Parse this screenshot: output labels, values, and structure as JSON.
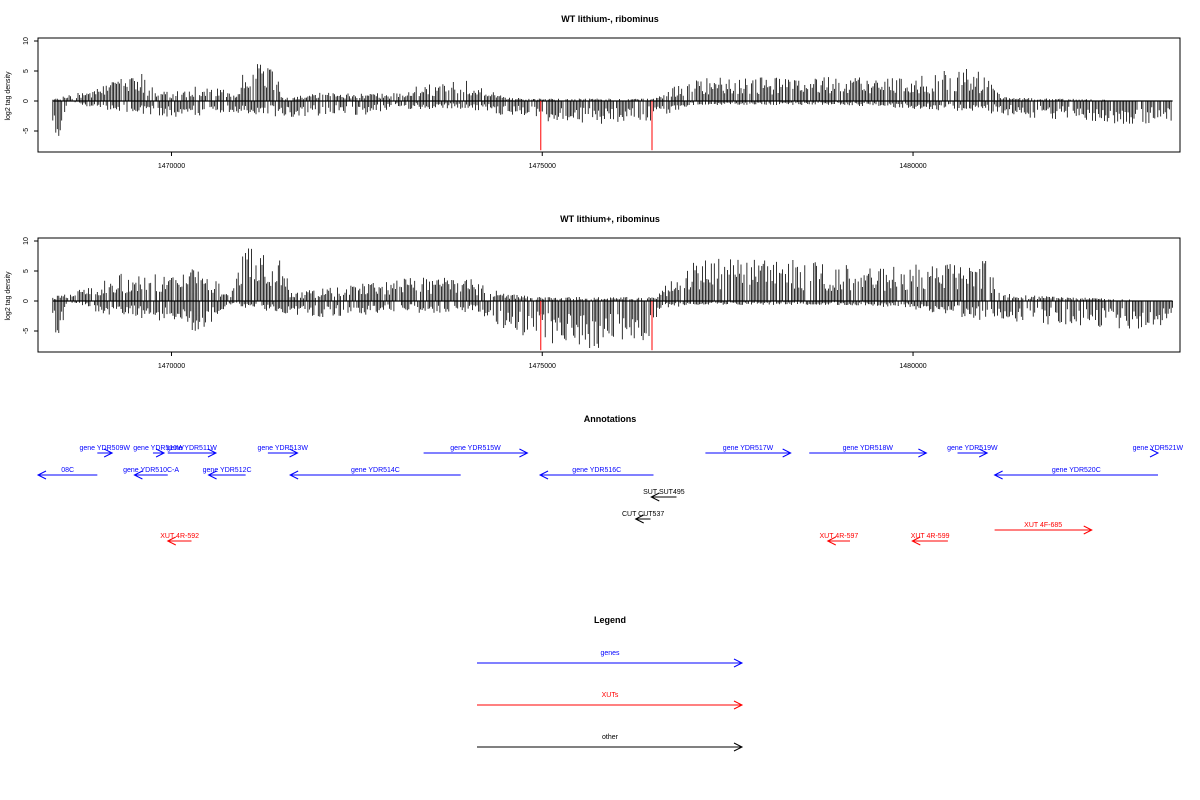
{
  "chart_data": [
    {
      "type": "bar",
      "title": "WT lithium-, ribominus",
      "ylabel": "log2 tag density",
      "xlim": [
        1468200,
        1483600
      ],
      "ylim": [
        -8.5,
        10.5
      ],
      "x_ticks": [
        1470000,
        1475000,
        1480000
      ],
      "x_tick_labels": [
        "1470000",
        "1475000",
        "1480000"
      ],
      "y_ticks": [
        -5,
        0,
        5,
        10
      ],
      "y_tick_labels": [
        "-5",
        "0",
        "5",
        "10"
      ],
      "bin_width": 20,
      "positive_profile": [
        [
          1468200,
          0
        ],
        [
          1469000,
          1.5
        ],
        [
          1469300,
          3.0
        ],
        [
          1469600,
          3.5
        ],
        [
          1469800,
          1.0
        ],
        [
          1470400,
          2.0
        ],
        [
          1470900,
          1.0
        ],
        [
          1471000,
          5.0
        ],
        [
          1471400,
          4.0
        ],
        [
          1471500,
          0.5
        ],
        [
          1472000,
          1.0
        ],
        [
          1473000,
          1.0
        ],
        [
          1473300,
          2.0
        ],
        [
          1474000,
          2.5
        ],
        [
          1474500,
          0.5
        ],
        [
          1474900,
          0.3
        ],
        [
          1476500,
          0.3
        ],
        [
          1477000,
          3.0
        ],
        [
          1478000,
          3.0
        ],
        [
          1479000,
          3.0
        ],
        [
          1480000,
          3.0
        ],
        [
          1480300,
          3.5
        ],
        [
          1480600,
          4.5
        ],
        [
          1481000,
          3.5
        ],
        [
          1481200,
          0.5
        ],
        [
          1482000,
          0.3
        ],
        [
          1483500,
          0
        ]
      ],
      "negative_profile": [
        [
          1468200,
          -5.0
        ],
        [
          1468500,
          -4.5
        ],
        [
          1468600,
          0
        ],
        [
          1469000,
          -1.0
        ],
        [
          1470000,
          -2.0
        ],
        [
          1471000,
          -1.5
        ],
        [
          1471500,
          -2.0
        ],
        [
          1472500,
          -2.0
        ],
        [
          1473000,
          -1.0
        ],
        [
          1474000,
          -1.0
        ],
        [
          1474900,
          -2.5
        ],
        [
          1475500,
          -3.0
        ],
        [
          1476500,
          -2.5
        ],
        [
          1477000,
          -0.5
        ],
        [
          1478000,
          -0.5
        ],
        [
          1479000,
          -0.5
        ],
        [
          1480000,
          -1.0
        ],
        [
          1481000,
          -1.5
        ],
        [
          1482000,
          -2.5
        ],
        [
          1483000,
          -3.0
        ],
        [
          1483500,
          -2.5
        ]
      ],
      "highlight_lines": [
        {
          "x": 1474980,
          "y0": 0,
          "y1": -8.2,
          "color": "#ff0000"
        },
        {
          "x": 1476480,
          "y0": 0,
          "y1": -8.2,
          "color": "#ff0000"
        }
      ]
    },
    {
      "type": "bar",
      "title": "WT lithium+, ribominus",
      "ylabel": "log2 tag density",
      "xlim": [
        1468200,
        1483600
      ],
      "ylim": [
        -8.5,
        10.5
      ],
      "x_ticks": [
        1470000,
        1475000,
        1480000
      ],
      "x_tick_labels": [
        "1470000",
        "1475000",
        "1480000"
      ],
      "y_ticks": [
        -5,
        0,
        5,
        10
      ],
      "y_tick_labels": [
        "-5",
        "0",
        "5",
        "10"
      ],
      "bin_width": 20,
      "positive_profile": [
        [
          1468200,
          0
        ],
        [
          1469000,
          2.0
        ],
        [
          1469300,
          3.5
        ],
        [
          1469700,
          3.5
        ],
        [
          1470400,
          4.0
        ],
        [
          1470800,
          1.0
        ],
        [
          1471000,
          7.0
        ],
        [
          1471500,
          5.5
        ],
        [
          1471600,
          1.0
        ],
        [
          1472000,
          1.5
        ],
        [
          1473300,
          3.0
        ],
        [
          1474000,
          3.0
        ],
        [
          1474500,
          1.0
        ],
        [
          1474900,
          0.5
        ],
        [
          1476500,
          0.5
        ],
        [
          1477000,
          5.0
        ],
        [
          1477500,
          5.5
        ],
        [
          1478500,
          5.0
        ],
        [
          1479500,
          4.5
        ],
        [
          1480300,
          4.5
        ],
        [
          1480700,
          5.5
        ],
        [
          1481000,
          5.0
        ],
        [
          1481200,
          1.0
        ],
        [
          1482000,
          0.5
        ],
        [
          1483500,
          0
        ]
      ],
      "negative_profile": [
        [
          1468200,
          -5.0
        ],
        [
          1468500,
          -4.0
        ],
        [
          1468600,
          0
        ],
        [
          1469000,
          -1.5
        ],
        [
          1469800,
          -2.5
        ],
        [
          1470400,
          -4.0
        ],
        [
          1470800,
          -0.5
        ],
        [
          1471000,
          -1.0
        ],
        [
          1472000,
          -2.0
        ],
        [
          1473000,
          -1.5
        ],
        [
          1474000,
          -1.5
        ],
        [
          1474900,
          -5.0
        ],
        [
          1475500,
          -6.0
        ],
        [
          1476400,
          -5.5
        ],
        [
          1476600,
          -1.0
        ],
        [
          1477000,
          -0.5
        ],
        [
          1478000,
          -0.5
        ],
        [
          1479000,
          -0.5
        ],
        [
          1480000,
          -1.0
        ],
        [
          1481000,
          -2.5
        ],
        [
          1482000,
          -3.0
        ],
        [
          1483000,
          -3.5
        ],
        [
          1483500,
          -3.0
        ]
      ],
      "highlight_lines": [
        {
          "x": 1474980,
          "y0": 0,
          "y1": -8.2,
          "color": "#ff0000"
        },
        {
          "x": 1476480,
          "y0": 0,
          "y1": -8.2,
          "color": "#ff0000"
        }
      ]
    }
  ],
  "annotations": {
    "title": "Annotations",
    "genes_color": "#0000ff",
    "xuts_color": "#ff0000",
    "other_color": "#000000",
    "features": [
      {
        "label": "08C",
        "start": 1468200,
        "end": 1469000,
        "strand": "-",
        "kind": "gene",
        "track": 1
      },
      {
        "label": "gene YDR509W",
        "start": 1469000,
        "end": 1469200,
        "strand": "+",
        "kind": "gene",
        "track": 0
      },
      {
        "label": "gene YDR510W",
        "start": 1469750,
        "end": 1469900,
        "strand": "+",
        "kind": "gene",
        "track": 0
      },
      {
        "label": "gene YDR510C-A",
        "start": 1469500,
        "end": 1469950,
        "strand": "-",
        "kind": "gene",
        "track": 1
      },
      {
        "label": "gene YDR511W",
        "start": 1469950,
        "end": 1470600,
        "strand": "+",
        "kind": "gene",
        "track": 0
      },
      {
        "label": "gene YDR512C",
        "start": 1470500,
        "end": 1471000,
        "strand": "-",
        "kind": "gene",
        "track": 1
      },
      {
        "label": "gene YDR513W",
        "start": 1471300,
        "end": 1471700,
        "strand": "+",
        "kind": "gene",
        "track": 0
      },
      {
        "label": "gene YDR514C",
        "start": 1471600,
        "end": 1473900,
        "strand": "-",
        "kind": "gene",
        "track": 1
      },
      {
        "label": "gene YDR515W",
        "start": 1473400,
        "end": 1474800,
        "strand": "+",
        "kind": "gene",
        "track": 0
      },
      {
        "label": "gene YDR516C",
        "start": 1474970,
        "end": 1476500,
        "strand": "-",
        "kind": "gene",
        "track": 1
      },
      {
        "label": "gene YDR517W",
        "start": 1477200,
        "end": 1478350,
        "strand": "+",
        "kind": "gene",
        "track": 0
      },
      {
        "label": "gene YDR518W",
        "start": 1478600,
        "end": 1480180,
        "strand": "+",
        "kind": "gene",
        "track": 0
      },
      {
        "label": "gene YDR519W",
        "start": 1480600,
        "end": 1481000,
        "strand": "+",
        "kind": "gene",
        "track": 0
      },
      {
        "label": "gene YDR520C",
        "start": 1481100,
        "end": 1483640,
        "strand": "-",
        "kind": "gene",
        "track": 1
      },
      {
        "label": "gene YDR521W",
        "start": 1483300,
        "end": 1483640,
        "strand": "+",
        "kind": "gene",
        "track": 0
      },
      {
        "label": "SUT SUT495",
        "start": 1476470,
        "end": 1476810,
        "strand": "-",
        "kind": "other",
        "track": 2
      },
      {
        "label": "CUT CUT537",
        "start": 1476260,
        "end": 1476460,
        "strand": "-",
        "kind": "other",
        "track": 3
      },
      {
        "label": "XUT 4R-592",
        "start": 1469950,
        "end": 1470270,
        "strand": "-",
        "kind": "xut",
        "track": 4
      },
      {
        "label": "XUT 4R-597",
        "start": 1478850,
        "end": 1479150,
        "strand": "-",
        "kind": "xut",
        "track": 4
      },
      {
        "label": "XUT 4R-599",
        "start": 1479990,
        "end": 1480470,
        "strand": "-",
        "kind": "xut",
        "track": 4
      },
      {
        "label": "XUT 4F-685",
        "start": 1481100,
        "end": 1482410,
        "strand": "+",
        "kind": "xut",
        "track": 3.5
      }
    ]
  },
  "legend": {
    "title": "Legend",
    "items": [
      {
        "label": "genes",
        "color": "#0000ff"
      },
      {
        "label": "XUTs",
        "color": "#ff0000"
      },
      {
        "label": "other",
        "color": "#000000"
      }
    ]
  }
}
